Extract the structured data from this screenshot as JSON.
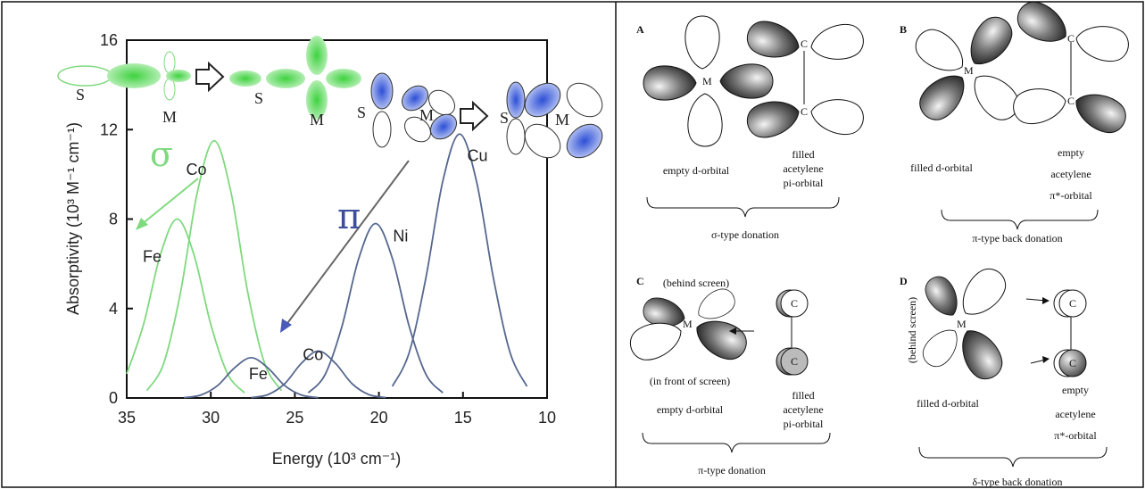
{
  "chart_data": {
    "type": "line",
    "xlabel": "Energy (10³ cm⁻¹)",
    "ylabel": "Absorptivity (10³ M⁻¹ cm⁻¹)",
    "xlim": [
      35,
      10
    ],
    "ylim": [
      0,
      16
    ],
    "xticks": [
      35,
      30,
      25,
      20,
      15,
      10
    ],
    "yticks": [
      0,
      4,
      8,
      12,
      16
    ],
    "annotations": [
      "σ",
      "π"
    ],
    "orbital_labels": [
      "S",
      "M",
      "S",
      "M",
      "S",
      "M",
      "S",
      "M"
    ],
    "series": [
      {
        "name": "Fe",
        "color": "#7fd97f",
        "x": [
          28,
          29,
          30,
          31,
          32,
          33,
          34,
          35
        ],
        "values": [
          0.23,
          1.08,
          3.29,
          6.4,
          8,
          6.4,
          3.29,
          1.08
        ]
      },
      {
        "name": "Co",
        "color": "#7fd97f",
        "x": [
          25.8,
          26.8,
          27.8,
          28.8,
          29.8,
          30.8,
          31.8,
          32.8,
          33.8
        ],
        "values": [
          0.33,
          1.55,
          4.72,
          9.2,
          11.5,
          9.2,
          4.72,
          1.55,
          0.33
        ]
      },
      {
        "name": "Fe",
        "color": "#56678f",
        "x": [
          23.6,
          24.6,
          25.6,
          26.6,
          27.6,
          28.6,
          29.6,
          30.6,
          31.6
        ],
        "values": [
          0.016,
          0.13,
          0.55,
          1.34,
          1.8,
          1.34,
          0.55,
          0.13,
          0.016
        ]
      },
      {
        "name": "Co",
        "color": "#56678f",
        "x": [
          19.6,
          20.6,
          21.6,
          22.6,
          23.6,
          24.6,
          25.6,
          26.6,
          27.6
        ],
        "values": [
          0.018,
          0.15,
          0.64,
          1.56,
          2.1,
          1.56,
          0.64,
          0.15,
          0.018
        ]
      },
      {
        "name": "Ni",
        "color": "#56678f",
        "x": [
          16.2,
          17.2,
          18.2,
          19.2,
          20.2,
          21.2,
          22.2,
          23.2,
          24.2
        ],
        "values": [
          0.23,
          1.05,
          3.2,
          6.24,
          7.8,
          6.24,
          3.2,
          1.05,
          0.23
        ]
      },
      {
        "name": "Cu",
        "color": "#56678f",
        "x": [
          11.2,
          12.2,
          13.2,
          14.2,
          15.2,
          16.2,
          17.2,
          18.2,
          19.2
        ],
        "values": [
          0.52,
          2.03,
          5.4,
          9.7,
          11.8,
          9.7,
          5.4,
          2.03,
          0.52
        ]
      }
    ]
  },
  "diagram": {
    "panels": [
      {
        "letter": "A",
        "atoms": [
          "M",
          "C",
          "C"
        ],
        "left_caption": [
          "empty d-orbital"
        ],
        "right_caption": [
          "filled",
          "acetylene",
          "pi-orbital"
        ],
        "title": "σ-type donation"
      },
      {
        "letter": "B",
        "atoms": [
          "M",
          "C",
          "C"
        ],
        "left_caption": [
          "filled d-orbital"
        ],
        "right_caption": [
          "empty",
          "acetylene",
          "π*-orbital"
        ],
        "title": "π-type back donation"
      },
      {
        "letter": "C",
        "atoms": [
          "M",
          "C",
          "C"
        ],
        "notes": [
          "(behind screen)",
          "(in front of screen)"
        ],
        "left_caption": [
          "empty d-orbital"
        ],
        "right_caption": [
          "filled",
          "acetylene",
          "pi-orbital"
        ],
        "title": "π-type donation"
      },
      {
        "letter": "D",
        "atoms": [
          "M",
          "C",
          "C"
        ],
        "notes": [
          "(behind screen)"
        ],
        "left_caption": [
          "filled d-orbital"
        ],
        "right_caption": [
          "empty",
          "acetylene",
          "π*-orbital"
        ],
        "title": "δ-type back donation"
      }
    ]
  }
}
